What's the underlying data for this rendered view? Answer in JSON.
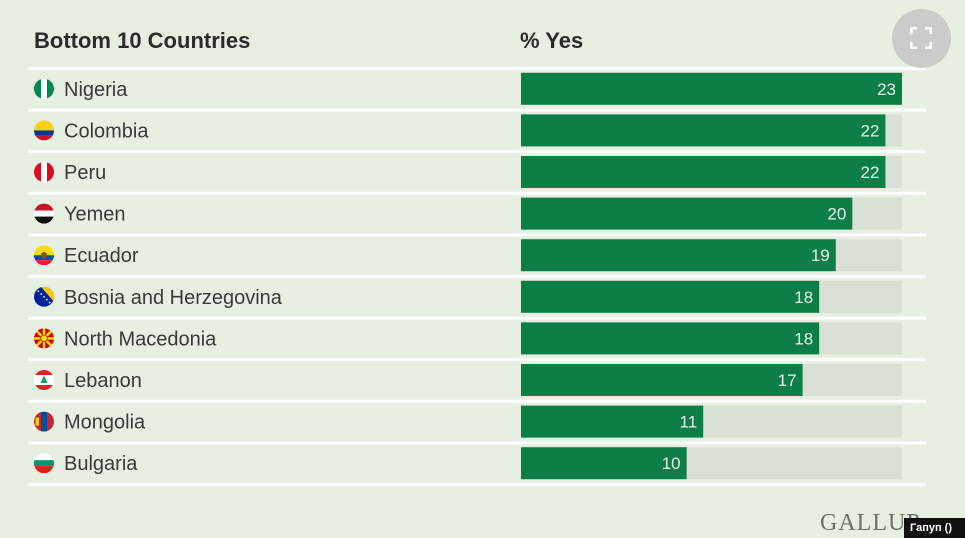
{
  "header": {
    "left_label": "Bottom 10 Countries",
    "right_label": "% Yes"
  },
  "fullscreen_button": {
    "icon": "fullscreen-icon"
  },
  "logo": {
    "text": "GALLUP"
  },
  "tag": {
    "text": "Гапуп ()"
  },
  "colors": {
    "bar": "#0d7e45",
    "track": "#d8dfd5",
    "background": "#e6efe2",
    "divider": "#ffffff"
  },
  "chart_data": {
    "type": "bar",
    "orientation": "horizontal",
    "categories": [
      "Nigeria",
      "Colombia",
      "Peru",
      "Yemen",
      "Ecuador",
      "Bosnia and Herzegovina",
      "North Macedonia",
      "Lebanon",
      "Mongolia",
      "Bulgaria"
    ],
    "values": [
      23,
      22,
      22,
      20,
      19,
      18,
      18,
      17,
      11,
      10
    ],
    "flags": [
      "flag-nigeria-icon",
      "flag-colombia-icon",
      "flag-peru-icon",
      "flag-yemen-icon",
      "flag-ecuador-icon",
      "flag-bosnia-icon",
      "flag-north-macedonia-icon",
      "flag-lebanon-icon",
      "flag-mongolia-icon",
      "flag-bulgaria-icon"
    ],
    "column_headers": [
      "Bottom 10 Countries",
      "% Yes"
    ],
    "xlim": [
      0,
      23
    ]
  }
}
